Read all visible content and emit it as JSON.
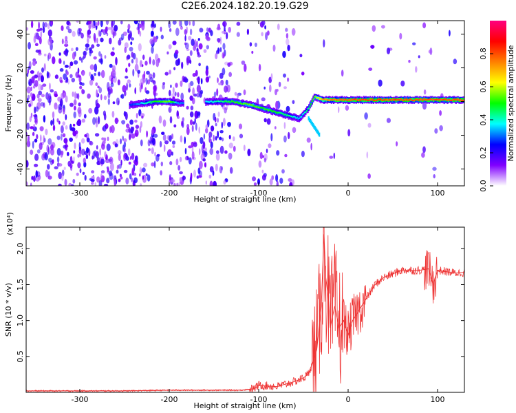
{
  "title": "C2E6.2024.182.20.19.G29",
  "chart_data": [
    {
      "type": "heatmap",
      "title": "",
      "xlabel": "Height of straight line (km)",
      "ylabel": "Frequency (Hz)",
      "xlim": [
        -360,
        130
      ],
      "ylim": [
        -50,
        48
      ],
      "x_ticks": [
        -300,
        -200,
        -100,
        0,
        100
      ],
      "x_tick_labels": [
        "-300",
        "-200",
        "-100",
        "0",
        "100"
      ],
      "y_ticks": [
        -40,
        -20,
        0,
        20,
        40
      ],
      "y_tick_labels": [
        "-40",
        "-20",
        "0",
        "20",
        "40"
      ],
      "colorbar": {
        "label": "Normalized spectral amplitude",
        "range": [
          0,
          1
        ],
        "ticks": [
          0.0,
          0.2,
          0.4,
          0.6,
          0.8
        ],
        "tick_labels": [
          "0.0",
          "0.2",
          "0.4",
          "0.6",
          "0.8"
        ],
        "colors": [
          "#ffffff",
          "#8000ff",
          "#0000ff",
          "#00ffff",
          "#00ff00",
          "#ffff00",
          "#ff8000",
          "#ff0000",
          "#ff0080"
        ]
      },
      "ridge": {
        "description_points_x": [
          -245,
          -215,
          -200,
          -190,
          -150,
          -130,
          -110,
          -90,
          -70,
          -55,
          -45,
          -38,
          -30,
          -20,
          0,
          30,
          60,
          90,
          130
        ],
        "description_points_freq": [
          -2,
          0,
          0,
          -1,
          0,
          0,
          -2,
          -5,
          -8,
          -10,
          -4,
          3,
          1,
          1,
          1,
          1,
          1,
          1,
          1
        ],
        "amplitude": [
          0.25,
          0.5,
          0.55,
          0.3,
          0.4,
          0.5,
          0.55,
          0.5,
          0.45,
          0.35,
          0.45,
          0.55,
          0.7,
          0.75,
          0.8,
          0.8,
          0.8,
          0.8,
          0.8
        ]
      }
    },
    {
      "type": "line",
      "title": "",
      "xlabel": "Height of straight line (km)",
      "ylabel": "SNR (10 * v/v)",
      "y_scale_note": "(x10⁴)",
      "xlim": [
        -360,
        130
      ],
      "ylim": [
        0,
        2.3
      ],
      "x_ticks": [
        -300,
        -200,
        -100,
        0,
        100
      ],
      "x_tick_labels": [
        "-300",
        "-200",
        "-100",
        "0",
        "100"
      ],
      "y_ticks": [
        0.5,
        1.0,
        1.5,
        2.0
      ],
      "y_tick_labels": [
        "0.5",
        "1.0",
        "1.5",
        "2.0"
      ],
      "series": [
        {
          "color": "#ee3333",
          "x": [
            -360,
            -300,
            -250,
            -200,
            -150,
            -120,
            -105,
            -100,
            -80,
            -60,
            -50,
            -45,
            -40,
            -35,
            -30,
            -27,
            -25,
            -22,
            -20,
            -15,
            -10,
            -5,
            0,
            5,
            10,
            20,
            30,
            40,
            50,
            60,
            70,
            80,
            90,
            95,
            100,
            110,
            120,
            130
          ],
          "y": [
            0.02,
            0.02,
            0.02,
            0.03,
            0.03,
            0.03,
            0.05,
            0.1,
            0.08,
            0.15,
            0.2,
            0.25,
            0.4,
            0.6,
            1.2,
            2.2,
            1.6,
            1.3,
            0.9,
            1.2,
            0.9,
            1.0,
            0.8,
            1.0,
            1.1,
            1.3,
            1.5,
            1.6,
            1.65,
            1.7,
            1.7,
            1.7,
            1.72,
            1.5,
            1.7,
            1.68,
            1.66,
            1.67
          ]
        }
      ]
    }
  ]
}
